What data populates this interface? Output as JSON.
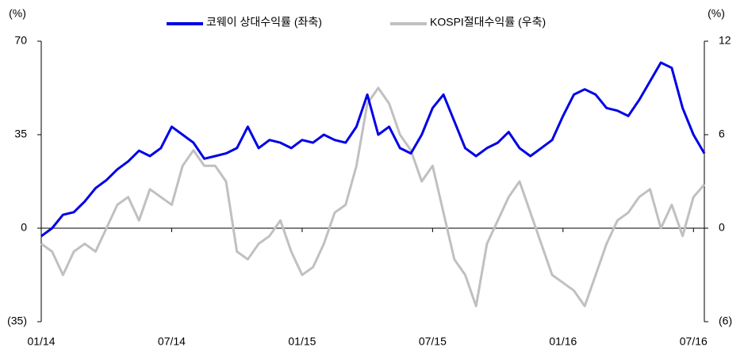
{
  "chart_data": {
    "type": "line",
    "y_label": "(%)",
    "y2_label": "(%)",
    "categories": [
      "01/14",
      null,
      null,
      null,
      null,
      null,
      null,
      null,
      null,
      null,
      null,
      null,
      "07/14",
      null,
      null,
      null,
      null,
      null,
      null,
      null,
      null,
      null,
      null,
      null,
      "01/15",
      null,
      null,
      null,
      null,
      null,
      null,
      null,
      null,
      null,
      null,
      null,
      "07/15",
      null,
      null,
      null,
      null,
      null,
      null,
      null,
      null,
      null,
      null,
      null,
      "01/16",
      null,
      null,
      null,
      null,
      null,
      null,
      null,
      null,
      null,
      null,
      null,
      "07/16",
      null
    ],
    "series": [
      {
        "name": "코웨이 상대수익률 (좌축)",
        "color": "#0000e6",
        "axis": "y",
        "values": [
          -3,
          0,
          5,
          6,
          10,
          15,
          18,
          22,
          25,
          29,
          27,
          30,
          38,
          35,
          32,
          26,
          27,
          28,
          30,
          38,
          30,
          33,
          32,
          30,
          33,
          32,
          35,
          33,
          32,
          38,
          50,
          35,
          38,
          30,
          28,
          35,
          45,
          50,
          40,
          30,
          27,
          30,
          32,
          36,
          30,
          27,
          30,
          33,
          42,
          50,
          52,
          50,
          45,
          44,
          42,
          48,
          55,
          62,
          60,
          45,
          35,
          28
        ]
      },
      {
        "name": "KOSPI절대수익률 (우축)",
        "color": "#c0c0c0",
        "axis": "y2",
        "values": [
          -1,
          -1.5,
          -3,
          -1.5,
          -1,
          -1.5,
          0,
          1.5,
          2,
          0.5,
          2.5,
          2,
          1.5,
          4,
          5,
          4,
          4,
          3,
          -1.5,
          -2,
          -1,
          -0.5,
          0.5,
          -1.5,
          -3,
          -2.5,
          -1,
          1,
          1.5,
          4,
          8,
          9,
          8,
          6,
          5,
          3,
          4,
          1,
          -2,
          -3,
          -5,
          -1,
          0.5,
          2,
          3,
          1,
          -1,
          -3,
          -3.5,
          -4,
          -5,
          -3,
          -1,
          0.5,
          1,
          2,
          2.5,
          0,
          1.5,
          -0.5,
          2,
          2.8
        ]
      }
    ],
    "ylim": [
      -35,
      70
    ],
    "yticks": [
      {
        "value": -35,
        "label": "(35)"
      },
      0,
      35,
      70
    ],
    "y2lim": [
      -6,
      12
    ],
    "y2ticks": [
      {
        "value": -6,
        "label": "(6)"
      },
      0,
      6,
      12
    ]
  }
}
